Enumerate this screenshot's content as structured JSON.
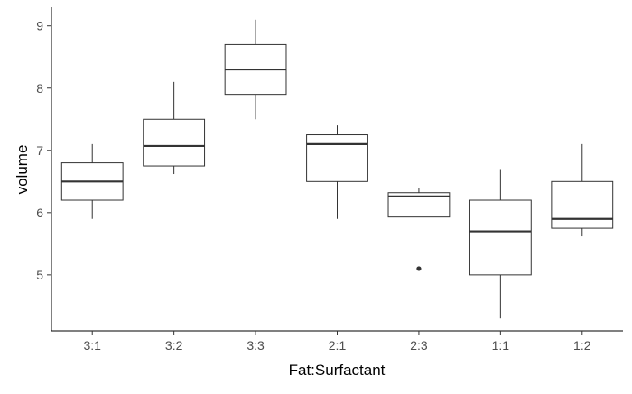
{
  "chart_data": {
    "type": "box",
    "xlabel": "Fat:Surfactant",
    "ylabel": "volume",
    "categories": [
      "3:1",
      "3:2",
      "3:3",
      "2:1",
      "2:3",
      "1:1",
      "1:2"
    ],
    "boxes": [
      {
        "category": "3:1",
        "min": 5.9,
        "q1": 6.2,
        "median": 6.5,
        "q3": 6.8,
        "max": 7.1,
        "outliers": []
      },
      {
        "category": "3:2",
        "min": 6.62,
        "q1": 6.75,
        "median": 7.07,
        "q3": 7.5,
        "max": 8.1,
        "outliers": []
      },
      {
        "category": "3:3",
        "min": 7.5,
        "q1": 7.9,
        "median": 8.3,
        "q3": 8.7,
        "max": 9.1,
        "outliers": []
      },
      {
        "category": "2:1",
        "min": 5.9,
        "q1": 6.5,
        "median": 7.1,
        "q3": 7.25,
        "max": 7.4,
        "outliers": []
      },
      {
        "category": "2:3",
        "min": 5.93,
        "q1": 5.93,
        "median": 6.26,
        "q3": 6.32,
        "max": 6.4,
        "outliers": [
          5.1
        ]
      },
      {
        "category": "1:1",
        "min": 4.3,
        "q1": 5.0,
        "median": 5.7,
        "q3": 6.2,
        "max": 6.7,
        "outliers": []
      },
      {
        "category": "1:2",
        "min": 5.62,
        "q1": 5.75,
        "median": 5.9,
        "q3": 6.5,
        "max": 7.1,
        "outliers": []
      }
    ],
    "yticks": [
      5,
      6,
      7,
      8,
      9
    ],
    "ylim": [
      4.1,
      9.3
    ],
    "grid": false,
    "legend": "none"
  }
}
